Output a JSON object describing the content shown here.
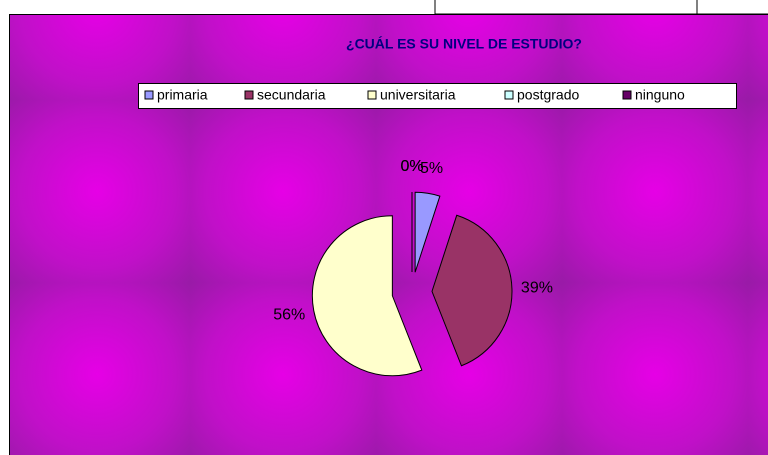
{
  "chart_data": {
    "type": "pie",
    "title": "¿CUÁL ES SU NIVEL DE ESTUDIO?",
    "categories": [
      "primaria",
      "secundaria",
      "universitaria",
      "postgrado",
      "ninguno"
    ],
    "values": [
      5,
      39,
      56,
      0,
      0
    ],
    "value_labels": [
      "5%",
      "39%",
      "56%",
      "0%",
      "0%"
    ],
    "colors": [
      "#9999ff",
      "#993366",
      "#ffffcc",
      "#ccffff",
      "#660066"
    ],
    "legend": "top"
  }
}
